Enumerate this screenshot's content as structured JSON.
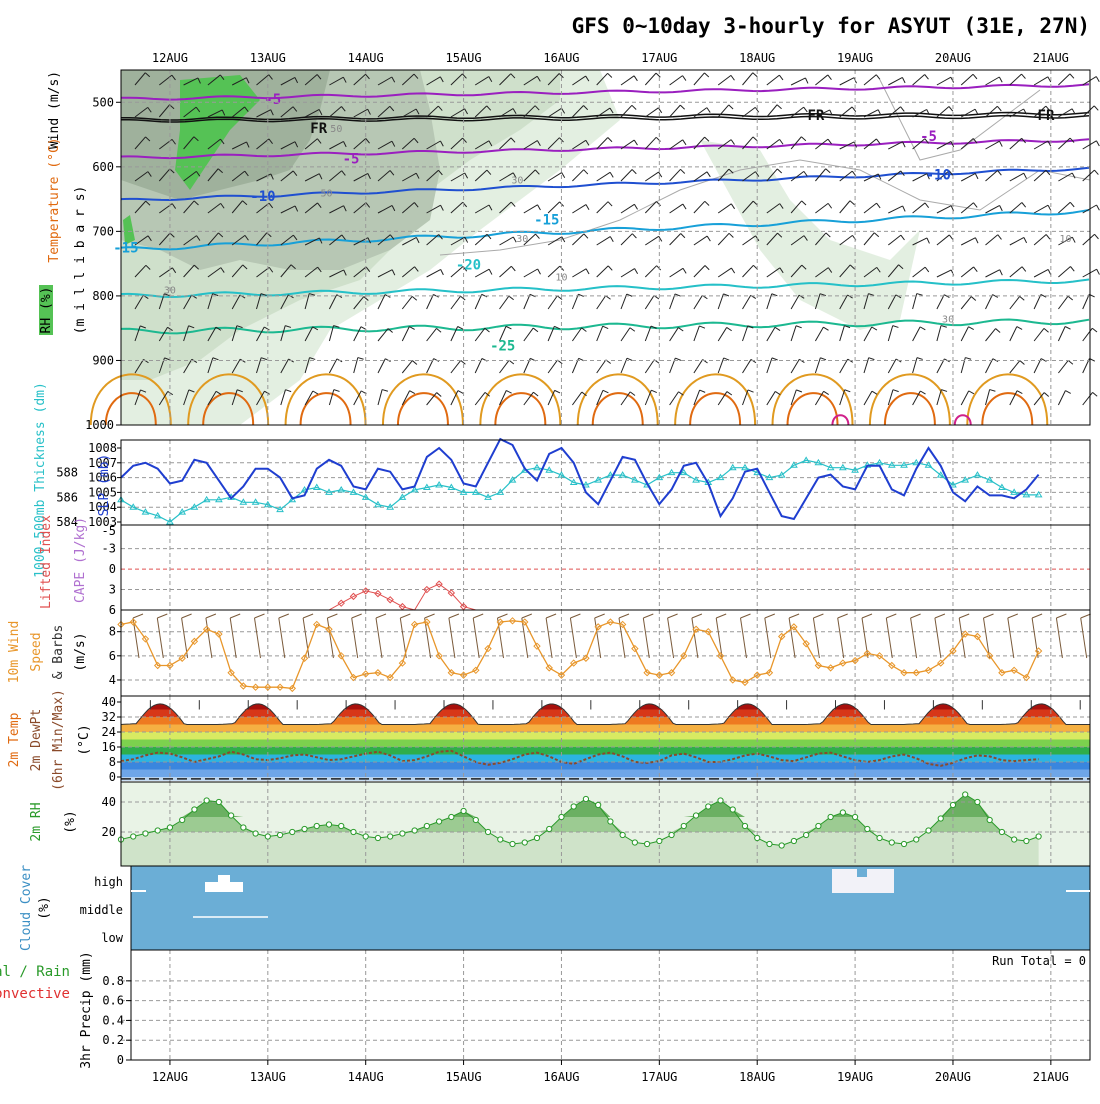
{
  "title": "GFS 0~10day 3-hourly for ASYUT (31E, 27N)",
  "colors": {
    "purple": "#9a1fbf",
    "black": "#111111",
    "blue": "#1f4fd0",
    "lblue": "#17a0d8",
    "cyan": "#25c0c8",
    "teal": "#1cb890",
    "orange": "#e09a20",
    "dorange": "#e06a10",
    "magenta": "#d0208a",
    "rhgreen": "#55c255",
    "slp": "#1f3ed0",
    "thick": "#28c0c8",
    "li": "#e05050",
    "wind": "#e8962a",
    "rh2m": "#2a9a2a",
    "cloud": "#6baed6"
  },
  "chart_data": [
    {
      "type": "line",
      "name": "upper-air",
      "ylabel_parts": [
        "Wind (m/s)",
        "Temperature (°C)",
        "RH (%)",
        "(m i l l i b a r s)"
      ],
      "yticks": [
        "500",
        "600",
        "700",
        "800",
        "900",
        "1000"
      ],
      "xticks": [
        "12AUG",
        "13AUG",
        "14AUG",
        "15AUG",
        "16AUG",
        "17AUG",
        "18AUG",
        "19AUG",
        "20AUG",
        "21AUG"
      ],
      "ylim": [
        450,
        1000
      ],
      "contour_labels": [
        {
          "text": "-5",
          "x": 10.05,
          "p": 495,
          "c": "purple"
        },
        {
          "text": "FR",
          "x": 10.52,
          "p": 540,
          "c": "black"
        },
        {
          "text": "FR",
          "x": 15.6,
          "p": 520,
          "c": "black"
        },
        {
          "text": "FR",
          "x": 17.95,
          "p": 520,
          "c": "black"
        },
        {
          "text": "-5",
          "x": 10.85,
          "p": 587,
          "c": "purple"
        },
        {
          "text": "-5",
          "x": 16.75,
          "p": 552,
          "c": "purple"
        },
        {
          "text": "-10",
          "x": 9.95,
          "p": 645,
          "c": "blue"
        },
        {
          "text": "-10",
          "x": 16.85,
          "p": 612,
          "c": "blue"
        },
        {
          "text": "-15",
          "x": 8.55,
          "p": 725,
          "c": "lblue"
        },
        {
          "text": "-15",
          "x": 12.85,
          "p": 682,
          "c": "lblue"
        },
        {
          "text": "-20",
          "x": 12.05,
          "p": 751,
          "c": "cyan"
        },
        {
          "text": "-25",
          "x": 12.4,
          "p": 877,
          "c": "teal"
        }
      ],
      "rh_labels": [
        {
          "text": "50",
          "x": 10.7,
          "p": 540
        },
        {
          "text": "50",
          "x": 10.6,
          "p": 640
        },
        {
          "text": "30",
          "x": 12.55,
          "p": 620
        },
        {
          "text": "30",
          "x": 12.6,
          "p": 710
        },
        {
          "text": "30",
          "x": 9.0,
          "p": 790
        },
        {
          "text": "10",
          "x": 13.0,
          "p": 770
        },
        {
          "text": "10",
          "x": 18.15,
          "p": 710
        },
        {
          "text": "30",
          "x": 16.95,
          "p": 835
        }
      ]
    },
    {
      "type": "line",
      "name": "slp-thickness",
      "ylabel": "SLP (mb)",
      "ylabel2": "1000-500mb Thickness (dm)",
      "yticks": [
        "1003",
        "1004",
        "1005",
        "1006",
        "1007",
        "1008"
      ],
      "yticks2": [
        "584",
        "586",
        "588"
      ],
      "x_start": 8.5,
      "x_step": 0.125,
      "series": [
        {
          "name": "SLP",
          "values": [
            1006.0,
            1006.8,
            1007.0,
            1006.6,
            1005.6,
            1005.8,
            1007.2,
            1007.0,
            1005.8,
            1004.6,
            1005.4,
            1006.6,
            1006.6,
            1006.0,
            1004.6,
            1004.8,
            1006.6,
            1007.2,
            1006.8,
            1005.4,
            1005.2,
            1006.6,
            1006.4,
            1005.2,
            1005.4,
            1007.4,
            1008.0,
            1007.2,
            1005.6,
            1005.4,
            1007.0,
            1008.6,
            1008.2,
            1006.6,
            1005.8,
            1007.6,
            1008.0,
            1007.0,
            1005.0,
            1004.2,
            1005.8,
            1007.4,
            1007.2,
            1005.6,
            1004.2,
            1005.2,
            1006.8,
            1007.0,
            1005.6,
            1003.4,
            1004.6,
            1006.4,
            1006.6,
            1005.0,
            1003.4,
            1003.2,
            1004.6,
            1006.0,
            1006.2,
            1005.4,
            1005.2,
            1006.8,
            1006.8,
            1005.2,
            1004.8,
            1006.6,
            1008.0,
            1006.8,
            1005.0,
            1004.4,
            1005.4,
            1004.8,
            1004.8,
            1004.6,
            1005.2,
            1006.2
          ]
        },
        {
          "name": "Thickness",
          "values": [
            585.8,
            585.2,
            584.8,
            584.5,
            584.0,
            584.8,
            585.2,
            585.8,
            585.8,
            586.0,
            585.6,
            585.6,
            585.4,
            585.0,
            585.8,
            586.6,
            586.8,
            586.4,
            586.6,
            586.4,
            586.0,
            585.4,
            585.2,
            586.0,
            586.6,
            586.8,
            587.0,
            586.8,
            586.4,
            586.4,
            586.0,
            586.4,
            587.4,
            588.2,
            588.4,
            588.2,
            587.8,
            587.2,
            587.0,
            587.4,
            587.8,
            587.8,
            587.4,
            587.0,
            587.6,
            588.0,
            588.0,
            587.4,
            587.2,
            587.6,
            588.4,
            588.4,
            588.0,
            587.6,
            587.8,
            588.6,
            589.0,
            588.8,
            588.4,
            588.4,
            588.2,
            588.6,
            588.8,
            588.6,
            588.6,
            588.8,
            588.6,
            587.8,
            587.0,
            587.4,
            587.8,
            587.4,
            586.8,
            586.4,
            586.2,
            586.2
          ]
        }
      ]
    },
    {
      "type": "line",
      "name": "lifted-index",
      "ylabel": "Lifted Index",
      "ylabel2": "CAPE (J/kg)",
      "yticks": [
        "-3",
        "0",
        "3",
        "6"
      ],
      "yticks_top": "-5",
      "x_start": 8.5,
      "x_step": 0.125,
      "values": [
        6.5,
        6.0,
        6.0,
        7.0,
        7.5,
        7.5,
        7.0,
        6.5,
        7.0,
        7.5,
        7.5,
        6.8,
        6.5,
        6.8,
        7.5,
        7.5,
        7.0,
        6.0,
        5.0,
        4.0,
        3.2,
        3.6,
        4.5,
        5.5,
        6.5,
        3.0,
        2.2,
        3.5,
        5.5,
        6.8,
        7.5,
        7.5,
        7.2,
        6.5,
        6.0,
        6.2,
        6.8,
        7.5,
        7.8,
        7.8,
        7.5,
        7.2,
        7.0,
        6.8,
        7.5,
        7.8,
        7.8,
        7.5,
        7.2,
        7.0,
        7.4,
        7.8,
        7.8,
        7.5,
        7.0,
        7.0,
        7.5,
        7.8,
        7.8,
        7.5,
        7.2,
        7.5,
        7.8,
        7.8,
        7.5,
        7.2,
        7.4,
        7.8,
        7.8,
        7.5,
        7.2,
        7.5,
        7.8,
        7.8,
        7.5,
        7.5
      ]
    },
    {
      "type": "line",
      "name": "10m-wind",
      "ylabel": "10m Wind",
      "ylabel2": "Speed",
      "ylabel3": "& Barbs",
      "unit": "(m/s)",
      "yticks": [
        "4",
        "6",
        "8"
      ],
      "x_start": 8.5,
      "x_step": 0.125,
      "values": [
        8.6,
        8.8,
        7.4,
        5.2,
        5.2,
        5.8,
        7.2,
        8.2,
        7.8,
        4.6,
        3.5,
        3.4,
        3.4,
        3.4,
        3.3,
        5.8,
        8.6,
        8.2,
        6.0,
        4.2,
        4.5,
        4.6,
        4.2,
        5.4,
        8.6,
        8.8,
        6.0,
        4.6,
        4.4,
        4.8,
        6.6,
        8.8,
        8.9,
        8.8,
        6.8,
        5.0,
        4.4,
        5.4,
        5.8,
        8.4,
        8.8,
        8.6,
        6.6,
        4.6,
        4.4,
        4.6,
        6.0,
        8.2,
        8.0,
        6.0,
        4.0,
        3.8,
        4.4,
        4.6,
        7.6,
        8.4,
        7.0,
        5.2,
        5.0,
        5.4,
        5.6,
        6.2,
        6.0,
        5.2,
        4.6,
        4.6,
        4.8,
        5.4,
        6.4,
        7.8,
        7.6,
        6.0,
        4.6,
        4.8,
        4.2,
        6.4
      ]
    },
    {
      "type": "area",
      "name": "2m-temp",
      "ylabel": "2m Temp",
      "ylabel2": "2m DewPt",
      "ylabel3": "(6hr Min/Max)",
      "unit": "(°C)",
      "yticks": [
        "0",
        "8",
        "16",
        "24",
        "32",
        "40"
      ],
      "days": 10,
      "tmin": 28,
      "tmax": 39,
      "dewpoint": [
        8.5,
        9.5,
        11.5,
        13.0,
        12.5,
        10.5,
        8.0,
        9.5,
        11.0,
        13.5,
        12.0,
        9.5,
        9.0,
        10.0,
        11.5,
        12.0,
        10.5,
        9.0,
        9.5,
        11.0,
        12.5,
        13.5,
        11.5,
        8.5,
        9.0,
        11.0,
        13.5,
        14.0,
        11.0,
        8.0,
        6.5,
        7.5,
        9.5,
        12.0,
        13.0,
        11.0,
        8.0,
        7.0,
        9.5,
        12.0,
        13.0,
        11.0,
        8.0,
        7.5,
        8.5,
        11.5,
        12.5,
        10.5,
        8.0,
        8.0,
        9.5,
        11.5,
        12.5,
        11.0,
        9.0,
        8.5,
        10.5,
        12.5,
        13.0,
        11.0,
        9.0,
        8.0,
        9.0,
        11.0,
        12.0,
        10.0,
        7.0,
        6.0,
        7.5,
        10.0,
        11.5,
        11.0,
        9.0,
        8.5,
        9.0,
        9.5
      ]
    },
    {
      "type": "area",
      "name": "2m-rh",
      "ylabel": "2m RH",
      "unit": "(%)",
      "yticks": [
        "20",
        "40"
      ],
      "x_start": 8.5,
      "x_step": 0.125,
      "values": [
        15,
        17,
        19,
        21,
        23,
        28,
        35,
        41,
        40,
        31,
        23,
        19,
        17,
        18,
        20,
        22,
        24,
        25,
        24,
        20,
        17,
        16,
        17,
        19,
        21,
        24,
        27,
        30,
        34,
        28,
        20,
        15,
        12,
        13,
        16,
        22,
        30,
        37,
        42,
        38,
        27,
        18,
        13,
        12,
        14,
        18,
        24,
        31,
        37,
        41,
        35,
        24,
        16,
        12,
        11,
        14,
        18,
        24,
        30,
        33,
        30,
        22,
        16,
        13,
        12,
        15,
        21,
        29,
        38,
        45,
        40,
        28,
        20,
        15,
        14,
        17
      ]
    },
    {
      "type": "heatmap",
      "name": "cloud-cover",
      "ylabel": "Cloud Cover",
      "unit": "(%)",
      "levels": [
        "high",
        "middle",
        "low"
      ]
    },
    {
      "type": "bar",
      "name": "precip",
      "ylabel": "3hr Precip (mm)",
      "legend1": "Total / Rain",
      "legend2": "Convective",
      "run_total": "Run Total = 0",
      "yticks": [
        "0",
        "0.2",
        "0.4",
        "0.6",
        "0.8"
      ],
      "xticks": [
        "12AUG",
        "13AUG",
        "14AUG",
        "15AUG",
        "16AUG",
        "17AUG",
        "18AUG",
        "19AUG",
        "20AUG",
        "21AUG"
      ]
    }
  ]
}
